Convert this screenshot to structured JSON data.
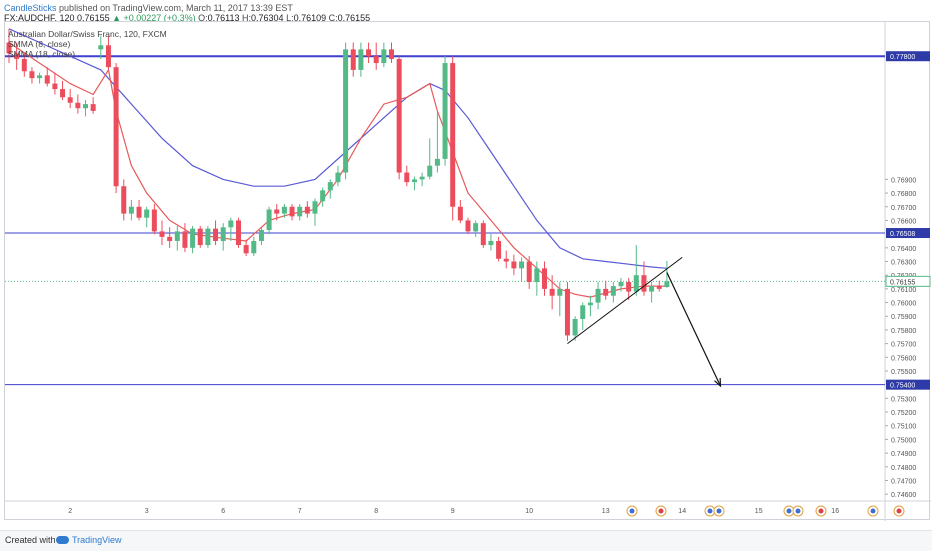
{
  "header": {
    "username": "CandleSticks",
    "published_text": "published on TradingView.com, March 11, 2017 13:39 EST",
    "symbol": "FX:AUDCHF, 120",
    "last": "0.76155",
    "change": "▲ +0.00227 (+0.3%)",
    "open_label": "O:",
    "open": "0.76113",
    "high_label": "H:",
    "high": "0.76304",
    "low_label": "L:",
    "low": "0.76109",
    "close_label": "C:",
    "close": "0.76155"
  },
  "legend": {
    "title": "Australian Dollar/Swiss Franc, 120, FXCM",
    "smma8": "SMMA (8, close)",
    "smma18": "SMMA (18, close)"
  },
  "footer": {
    "created_with": "Created with",
    "brand": "TradingView"
  },
  "colors": {
    "bull": "#53b987",
    "bear": "#eb4d5c",
    "smma8": "#e85a5a",
    "smma18": "#5a5ad6",
    "hline": "#3f3fd0",
    "label_bg": "#2e3aa8"
  },
  "chart_data": {
    "type": "candlestick",
    "ylim": [
      0.7455,
      0.7805
    ],
    "yticks": [
      "0.76900",
      "0.76800",
      "0.76700",
      "0.76600",
      "0.76400",
      "0.76300",
      "0.76200",
      "0.76100",
      "0.76000",
      "0.75900",
      "0.75800",
      "0.75700",
      "0.75600",
      "0.75500",
      "0.75300",
      "0.75200",
      "0.75100",
      "0.75000",
      "0.74900",
      "0.74800",
      "0.74700",
      "0.74600"
    ],
    "xticks": [
      {
        "label": "2",
        "pos": 8
      },
      {
        "label": "3",
        "pos": 18
      },
      {
        "label": "6",
        "pos": 28
      },
      {
        "label": "7",
        "pos": 38
      },
      {
        "label": "8",
        "pos": 48
      },
      {
        "label": "9",
        "pos": 58
      },
      {
        "label": "10",
        "pos": 68
      },
      {
        "label": "13",
        "pos": 78
      },
      {
        "label": "14",
        "pos": 88
      },
      {
        "label": "15",
        "pos": 98
      },
      {
        "label": "16",
        "pos": 108
      }
    ],
    "horizontal_levels": [
      {
        "value": 0.778,
        "label": "0.77800",
        "thick": true
      },
      {
        "value": 0.76508,
        "label": "0.76508",
        "thick": false
      },
      {
        "value": 0.754,
        "label": "0.75400",
        "thick": false
      }
    ],
    "last_price": {
      "value": 0.76155,
      "label": "0.76155"
    },
    "candles": [
      [
        0.779,
        0.78,
        0.7775,
        0.7782
      ],
      [
        0.7782,
        0.779,
        0.777,
        0.7778
      ],
      [
        0.7778,
        0.7782,
        0.7765,
        0.7769
      ],
      [
        0.7769,
        0.7772,
        0.776,
        0.7764
      ],
      [
        0.7764,
        0.7768,
        0.776,
        0.7766
      ],
      [
        0.7766,
        0.7772,
        0.7758,
        0.776
      ],
      [
        0.776,
        0.7768,
        0.7752,
        0.7756
      ],
      [
        0.7756,
        0.7762,
        0.7748,
        0.775
      ],
      [
        0.775,
        0.7756,
        0.7742,
        0.7746
      ],
      [
        0.7746,
        0.7752,
        0.7738,
        0.7742
      ],
      [
        0.7742,
        0.7748,
        0.7736,
        0.7745
      ],
      [
        0.7745,
        0.775,
        0.7738,
        0.774
      ],
      [
        0.7785,
        0.7795,
        0.7778,
        0.7788
      ],
      [
        0.7788,
        0.7795,
        0.777,
        0.7772
      ],
      [
        0.7772,
        0.7775,
        0.768,
        0.7685
      ],
      [
        0.7685,
        0.769,
        0.766,
        0.7665
      ],
      [
        0.7665,
        0.7675,
        0.766,
        0.767
      ],
      [
        0.767,
        0.7675,
        0.766,
        0.7662
      ],
      [
        0.7662,
        0.767,
        0.7655,
        0.7668
      ],
      [
        0.7668,
        0.7672,
        0.765,
        0.7652
      ],
      [
        0.7652,
        0.766,
        0.7642,
        0.7648
      ],
      [
        0.7648,
        0.7655,
        0.764,
        0.7645
      ],
      [
        0.7645,
        0.7656,
        0.7638,
        0.7652
      ],
      [
        0.7652,
        0.7658,
        0.7637,
        0.764
      ],
      [
        0.764,
        0.7656,
        0.7636,
        0.7654
      ],
      [
        0.7654,
        0.7656,
        0.764,
        0.7642
      ],
      [
        0.7642,
        0.7656,
        0.764,
        0.7654
      ],
      [
        0.7654,
        0.766,
        0.7642,
        0.7645
      ],
      [
        0.7645,
        0.7658,
        0.7638,
        0.7655
      ],
      [
        0.7655,
        0.7662,
        0.7645,
        0.766
      ],
      [
        0.766,
        0.7662,
        0.764,
        0.7642
      ],
      [
        0.7642,
        0.7646,
        0.7634,
        0.7636
      ],
      [
        0.7636,
        0.7648,
        0.7634,
        0.7645
      ],
      [
        0.7645,
        0.7655,
        0.7642,
        0.7653
      ],
      [
        0.7653,
        0.767,
        0.765,
        0.7668
      ],
      [
        0.7668,
        0.7672,
        0.766,
        0.7665
      ],
      [
        0.7665,
        0.7672,
        0.7662,
        0.767
      ],
      [
        0.767,
        0.7672,
        0.766,
        0.7663
      ],
      [
        0.7663,
        0.7672,
        0.766,
        0.767
      ],
      [
        0.767,
        0.7674,
        0.7662,
        0.7665
      ],
      [
        0.7665,
        0.7676,
        0.7656,
        0.7674
      ],
      [
        0.7674,
        0.7684,
        0.767,
        0.7682
      ],
      [
        0.7682,
        0.769,
        0.7676,
        0.7688
      ],
      [
        0.7688,
        0.77,
        0.7685,
        0.7695
      ],
      [
        0.7695,
        0.779,
        0.769,
        0.7785
      ],
      [
        0.7785,
        0.779,
        0.7765,
        0.777
      ],
      [
        0.777,
        0.779,
        0.7765,
        0.7785
      ],
      [
        0.7785,
        0.779,
        0.7775,
        0.778
      ],
      [
        0.778,
        0.779,
        0.777,
        0.7775
      ],
      [
        0.7775,
        0.779,
        0.7772,
        0.7785
      ],
      [
        0.7785,
        0.779,
        0.7775,
        0.7778
      ],
      [
        0.7778,
        0.778,
        0.769,
        0.7695
      ],
      [
        0.7695,
        0.77,
        0.7685,
        0.7688
      ],
      [
        0.7688,
        0.7692,
        0.7682,
        0.769
      ],
      [
        0.769,
        0.7695,
        0.7685,
        0.7692
      ],
      [
        0.7692,
        0.772,
        0.769,
        0.77
      ],
      [
        0.77,
        0.774,
        0.7695,
        0.7705
      ],
      [
        0.7705,
        0.778,
        0.77,
        0.7775
      ],
      [
        0.7775,
        0.778,
        0.766,
        0.767
      ],
      [
        0.767,
        0.7675,
        0.7658,
        0.766
      ],
      [
        0.766,
        0.7662,
        0.765,
        0.7652
      ],
      [
        0.7652,
        0.766,
        0.7648,
        0.7658
      ],
      [
        0.7658,
        0.766,
        0.764,
        0.7642
      ],
      [
        0.7642,
        0.765,
        0.7638,
        0.7645
      ],
      [
        0.7645,
        0.7648,
        0.763,
        0.7632
      ],
      [
        0.7632,
        0.7638,
        0.7625,
        0.763
      ],
      [
        0.763,
        0.7635,
        0.762,
        0.7625
      ],
      [
        0.7625,
        0.7633,
        0.7615,
        0.763
      ],
      [
        0.763,
        0.7634,
        0.761,
        0.7615
      ],
      [
        0.7615,
        0.763,
        0.7605,
        0.7625
      ],
      [
        0.7625,
        0.763,
        0.7605,
        0.761
      ],
      [
        0.761,
        0.762,
        0.7595,
        0.7605
      ],
      [
        0.7605,
        0.7615,
        0.759,
        0.761
      ],
      [
        0.761,
        0.7615,
        0.7572,
        0.7576
      ],
      [
        0.7576,
        0.759,
        0.7572,
        0.7588
      ],
      [
        0.7588,
        0.76,
        0.758,
        0.7598
      ],
      [
        0.7598,
        0.7605,
        0.759,
        0.76
      ],
      [
        0.76,
        0.7615,
        0.7595,
        0.761
      ],
      [
        0.761,
        0.7616,
        0.7602,
        0.7605
      ],
      [
        0.7605,
        0.7615,
        0.76,
        0.7612
      ],
      [
        0.7612,
        0.7618,
        0.7608,
        0.7615
      ],
      [
        0.7615,
        0.7618,
        0.7602,
        0.7608
      ],
      [
        0.7608,
        0.7642,
        0.7605,
        0.762
      ],
      [
        0.762,
        0.763,
        0.7605,
        0.7608
      ],
      [
        0.7608,
        0.7615,
        0.76,
        0.7612
      ],
      [
        0.7612,
        0.7616,
        0.7608,
        0.761
      ],
      [
        0.76113,
        0.76304,
        0.76109,
        0.76155
      ]
    ],
    "smma8": [
      [
        0,
        0.779
      ],
      [
        4,
        0.7775
      ],
      [
        8,
        0.776
      ],
      [
        11,
        0.7752
      ],
      [
        13,
        0.777
      ],
      [
        14,
        0.774
      ],
      [
        16,
        0.77
      ],
      [
        18,
        0.768
      ],
      [
        21,
        0.766
      ],
      [
        24,
        0.765
      ],
      [
        28,
        0.7647
      ],
      [
        31,
        0.7645
      ],
      [
        34,
        0.766
      ],
      [
        37,
        0.7665
      ],
      [
        40,
        0.7668
      ],
      [
        43,
        0.769
      ],
      [
        46,
        0.772
      ],
      [
        49,
        0.7745
      ],
      [
        52,
        0.775
      ],
      [
        55,
        0.776
      ],
      [
        56,
        0.774
      ],
      [
        58,
        0.771
      ],
      [
        60,
        0.768
      ],
      [
        63,
        0.766
      ],
      [
        66,
        0.764
      ],
      [
        69,
        0.7625
      ],
      [
        72,
        0.761
      ],
      [
        74,
        0.7606
      ],
      [
        76,
        0.7604
      ],
      [
        78,
        0.7607
      ],
      [
        80,
        0.761
      ],
      [
        83,
        0.7612
      ],
      [
        86,
        0.7612
      ]
    ],
    "smma18": [
      [
        0,
        0.78
      ],
      [
        4,
        0.779
      ],
      [
        8,
        0.778
      ],
      [
        12,
        0.777
      ],
      [
        16,
        0.7745
      ],
      [
        20,
        0.772
      ],
      [
        24,
        0.77
      ],
      [
        28,
        0.769
      ],
      [
        32,
        0.7685
      ],
      [
        36,
        0.7685
      ],
      [
        40,
        0.769
      ],
      [
        44,
        0.771
      ],
      [
        48,
        0.773
      ],
      [
        52,
        0.775
      ],
      [
        55,
        0.776
      ],
      [
        57,
        0.7755
      ],
      [
        60,
        0.7735
      ],
      [
        63,
        0.771
      ],
      [
        66,
        0.7685
      ],
      [
        69,
        0.766
      ],
      [
        72,
        0.764
      ],
      [
        75,
        0.7632
      ],
      [
        78,
        0.763
      ],
      [
        81,
        0.7628
      ],
      [
        84,
        0.7626
      ],
      [
        86,
        0.7625
      ]
    ],
    "trendline": [
      [
        73,
        0.757
      ],
      [
        88,
        0.7633
      ]
    ],
    "arrow": [
      [
        86,
        0.7622
      ],
      [
        93,
        0.7539
      ]
    ]
  }
}
